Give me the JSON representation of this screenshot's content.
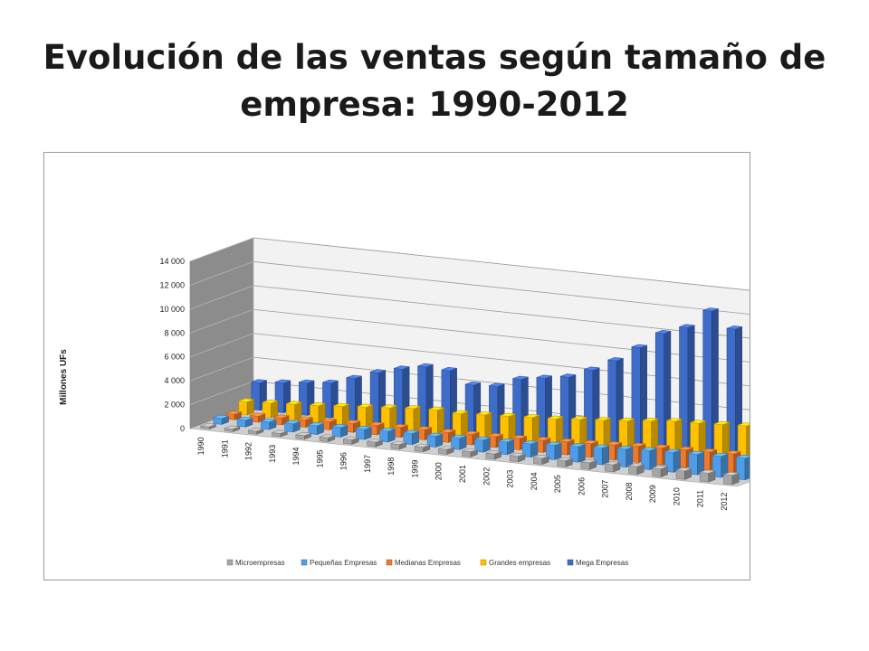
{
  "slide": {
    "title_line1": "Evolución de las ventas según tamaño de",
    "title_line2": "empresa: 1990-2012"
  },
  "chart_data": {
    "type": "bar",
    "variant": "3d-clustered-column",
    "title": "",
    "ylabel": "Millones UFs",
    "xlabel": "",
    "ylim": [
      0,
      14000
    ],
    "yticks": [
      0,
      2000,
      4000,
      6000,
      8000,
      10000,
      12000,
      14000
    ],
    "ytick_labels": [
      "0",
      "2 000",
      "4 000",
      "6 000",
      "8 000",
      "10 000",
      "12 000",
      "14 000"
    ],
    "grid": true,
    "legend_position": "bottom",
    "categories": [
      "1990",
      "1991",
      "1992",
      "1993",
      "1994",
      "1995",
      "1996",
      "1997",
      "1998",
      "1999",
      "2000",
      "2001",
      "2002",
      "2003",
      "2004",
      "2005",
      "2006",
      "2007",
      "2008",
      "2009",
      "2010",
      "2011",
      "2012"
    ],
    "series": [
      {
        "name": "Microempresas",
        "color": "#a6a6a6",
        "values": [
          200,
          220,
          250,
          270,
          300,
          330,
          360,
          380,
          390,
          380,
          400,
          420,
          450,
          470,
          500,
          520,
          560,
          600,
          650,
          680,
          700,
          730,
          760
        ]
      },
      {
        "name": "Pequeñas Empresas",
        "color": "#4f9de8",
        "values": [
          500,
          560,
          620,
          680,
          730,
          800,
          850,
          900,
          920,
          900,
          950,
          1000,
          1050,
          1100,
          1200,
          1300,
          1400,
          1500,
          1600,
          1650,
          1700,
          1750,
          1800
        ]
      },
      {
        "name": "Medianas Empresas",
        "color": "#f07a2a",
        "values": [
          450,
          500,
          560,
          610,
          660,
          730,
          780,
          820,
          840,
          820,
          860,
          900,
          950,
          1000,
          1080,
          1150,
          1250,
          1350,
          1420,
          1460,
          1500,
          1550,
          1600
        ]
      },
      {
        "name": "Grandes empresas",
        "color": "#ffc000",
        "values": [
          1100,
          1200,
          1300,
          1400,
          1550,
          1700,
          1850,
          2000,
          2100,
          2000,
          2100,
          2200,
          2300,
          2400,
          2550,
          2700,
          2850,
          3050,
          3250,
          3300,
          3400,
          3500,
          3600
        ]
      },
      {
        "name": "Mega Empresas",
        "color": "#3d6cc9",
        "values": [
          2300,
          2500,
          2700,
          2900,
          3500,
          4200,
          4700,
          5100,
          5000,
          4000,
          4100,
          4900,
          5200,
          5500,
          6300,
          7300,
          8600,
          10000,
          10700,
          12300,
          11000,
          12000,
          13700
        ]
      }
    ]
  }
}
